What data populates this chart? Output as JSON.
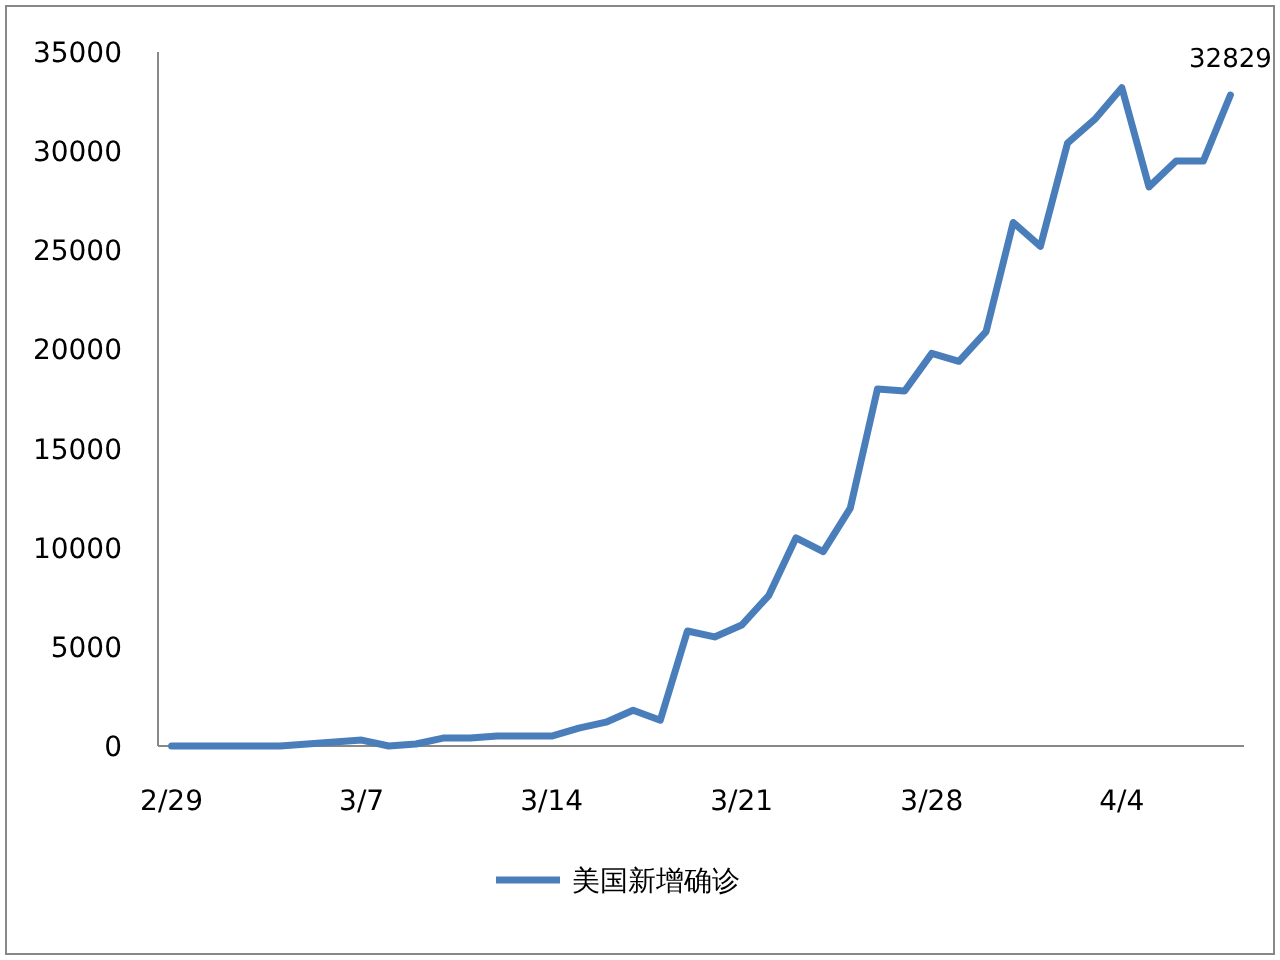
{
  "chart_data": {
    "type": "line",
    "categories": [
      "2/29",
      null,
      null,
      null,
      null,
      null,
      null,
      "3/7",
      null,
      null,
      null,
      null,
      null,
      null,
      "3/14",
      null,
      null,
      null,
      null,
      null,
      null,
      "3/21",
      null,
      null,
      null,
      null,
      null,
      null,
      "3/28",
      null,
      null,
      null,
      null,
      null,
      null,
      "4/4",
      null,
      null,
      null,
      null
    ],
    "series": [
      {
        "name": "美国新增确诊",
        "color": "#4a7ebb",
        "values": [
          0,
          0,
          0,
          0,
          0,
          100,
          200,
          300,
          0,
          100,
          400,
          400,
          500,
          500,
          500,
          900,
          1200,
          1800,
          1300,
          5800,
          5500,
          6100,
          7600,
          10500,
          9800,
          12000,
          18000,
          17900,
          19800,
          19400,
          20900,
          26400,
          25200,
          30400,
          31600,
          33200,
          28200,
          29500,
          29500,
          32829
        ],
        "value_labels": [
          null,
          null,
          null,
          null,
          null,
          null,
          null,
          null,
          null,
          null,
          null,
          null,
          null,
          null,
          null,
          null,
          null,
          null,
          null,
          null,
          null,
          null,
          null,
          null,
          null,
          null,
          null,
          null,
          null,
          null,
          null,
          null,
          null,
          null,
          null,
          null,
          null,
          null,
          null,
          "32829"
        ]
      }
    ],
    "ylim": [
      0,
      35000
    ],
    "yticks": [
      0,
      5000,
      10000,
      15000,
      20000,
      25000,
      30000,
      35000
    ],
    "legend": "bottom",
    "marker": "none"
  }
}
